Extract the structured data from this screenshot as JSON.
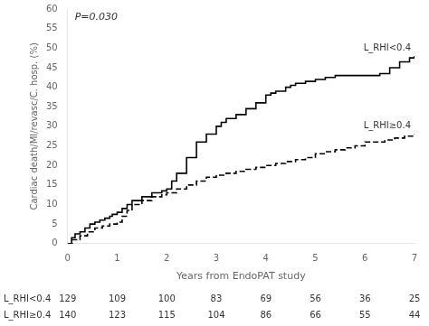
{
  "chart_data": {
    "type": "step",
    "xlabel": "Years from EndoPAT study",
    "ylabel": "Cardiac death/MI/revasc/C. hosp. (%)",
    "xlim": [
      0,
      7
    ],
    "ylim": [
      0,
      60
    ],
    "xticks": [
      0,
      1,
      2,
      3,
      4,
      5,
      6,
      7
    ],
    "yticks": [
      0,
      5,
      10,
      15,
      20,
      25,
      30,
      35,
      40,
      45,
      50,
      55,
      60
    ],
    "grid": false,
    "annotations": [
      "P=0.030"
    ],
    "series": [
      {
        "name": "L_RHI<0.4",
        "color": "#000000",
        "line_style": "solid",
        "x": [
          0,
          0.08,
          0.15,
          0.25,
          0.35,
          0.45,
          0.55,
          0.65,
          0.75,
          0.85,
          0.9,
          1.0,
          1.1,
          1.2,
          1.3,
          1.5,
          1.7,
          1.9,
          2.0,
          2.1,
          2.2,
          2.4,
          2.6,
          2.8,
          3.0,
          3.1,
          3.2,
          3.4,
          3.6,
          3.8,
          4.0,
          4.1,
          4.2,
          4.4,
          4.5,
          4.6,
          4.8,
          5.0,
          5.2,
          5.4,
          5.6,
          5.8,
          6.0,
          6.1,
          6.3,
          6.5,
          6.7,
          6.9,
          7.0
        ],
        "values": [
          0,
          1.5,
          2.5,
          3,
          4,
          5,
          5.5,
          6,
          6.5,
          7,
          7.5,
          8,
          9,
          10,
          11,
          12,
          13,
          13.5,
          14,
          16,
          18,
          22,
          26,
          28,
          30,
          31,
          32,
          33,
          34.5,
          36,
          38,
          38.5,
          39,
          40,
          40.5,
          41,
          41.5,
          42,
          42.5,
          43,
          43,
          43,
          43,
          43,
          43.5,
          45,
          46.5,
          47.5,
          48
        ]
      },
      {
        "name": "L_RHI≥0.4",
        "color": "#000000",
        "line_style": "dashed",
        "x": [
          0,
          0.1,
          0.25,
          0.4,
          0.55,
          0.7,
          0.85,
          1.0,
          1.1,
          1.2,
          1.3,
          1.5,
          1.7,
          1.9,
          2.0,
          2.2,
          2.4,
          2.6,
          2.8,
          3.0,
          3.2,
          3.4,
          3.6,
          3.8,
          4.0,
          4.2,
          4.4,
          4.6,
          4.8,
          5.0,
          5.2,
          5.4,
          5.6,
          5.8,
          6.0,
          6.2,
          6.4,
          6.6,
          6.8,
          7.0
        ],
        "values": [
          0,
          1,
          2,
          3,
          4,
          4.5,
          5,
          5.5,
          7,
          8.5,
          10,
          11,
          12,
          12.5,
          13,
          14,
          15,
          16,
          17,
          17.5,
          18,
          18.5,
          19,
          19.5,
          20,
          20.5,
          21,
          21.5,
          22,
          23,
          23.5,
          24,
          24.5,
          25,
          26,
          26,
          26.5,
          27,
          27.5,
          28
        ]
      }
    ],
    "table": {
      "rows": [
        {
          "label": "L_RHI<0.4",
          "values": [
            129,
            109,
            100,
            83,
            69,
            56,
            36,
            25
          ]
        },
        {
          "label": "L_RHI≥0.4",
          "values": [
            140,
            123,
            115,
            104,
            86,
            66,
            55,
            44
          ]
        }
      ]
    }
  }
}
